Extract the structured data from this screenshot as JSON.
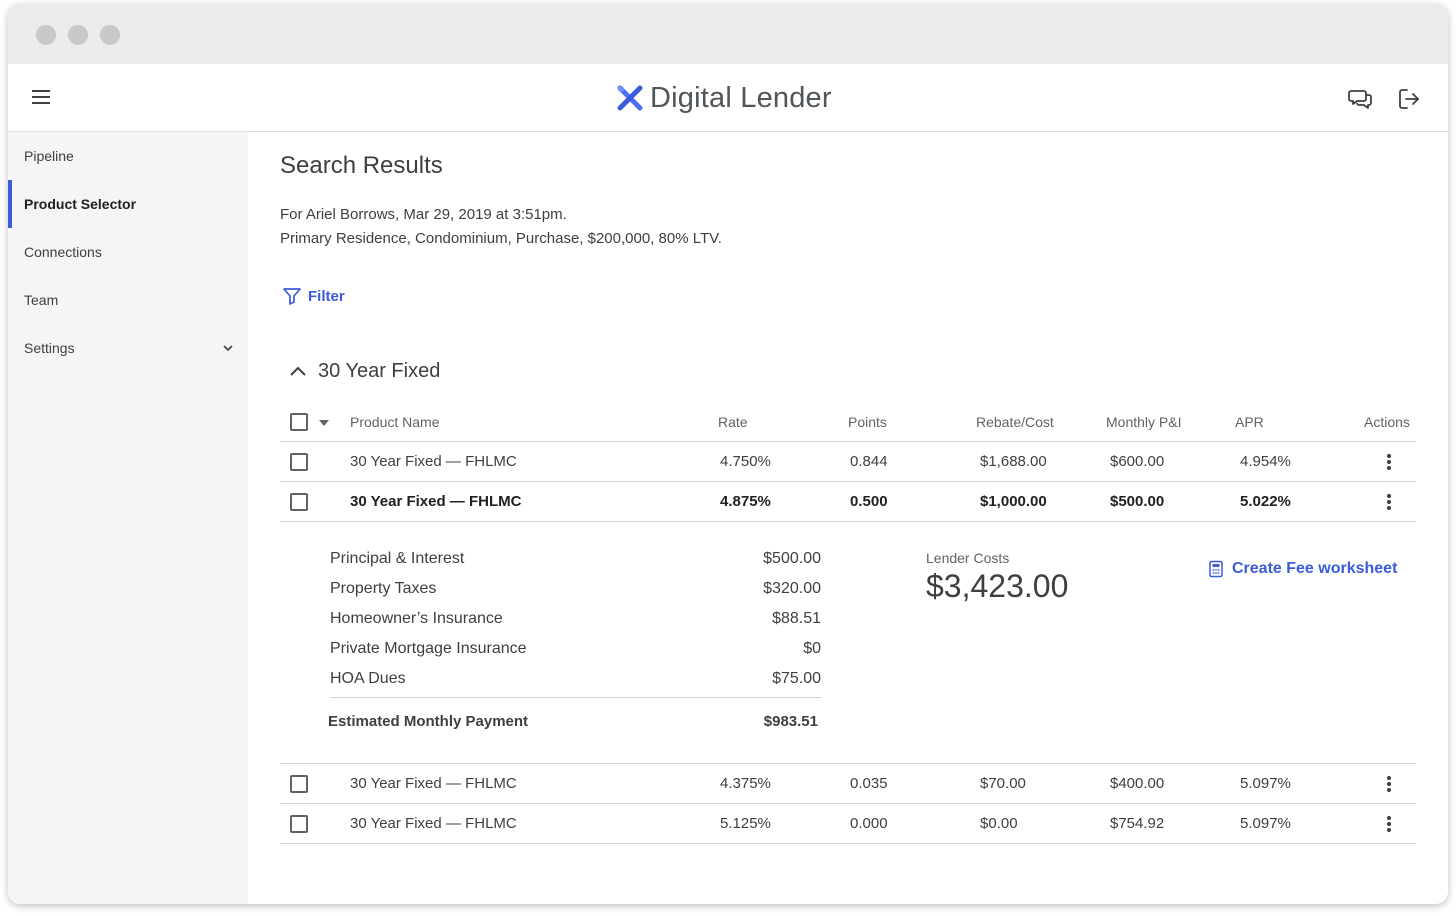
{
  "app": {
    "name": "Digital Lender"
  },
  "sidebar": {
    "items": [
      {
        "label": "Pipeline"
      },
      {
        "label": "Product Selector"
      },
      {
        "label": "Connections"
      },
      {
        "label": "Team"
      },
      {
        "label": "Settings"
      }
    ]
  },
  "page": {
    "title": "Search Results",
    "meta_line1": "For Ariel Borrows, Mar 29, 2019 at 3:51pm.",
    "meta_line2": "Primary Residence, Condominium, Purchase, $200,000, 80% LTV.",
    "filter_label": "Filter"
  },
  "group": {
    "label": "30 Year Fixed"
  },
  "table": {
    "headers": {
      "product": "Product Name",
      "rate": "Rate",
      "points": "Points",
      "rebate": "Rebate/Cost",
      "monthly": "Monthly P&I",
      "apr": "APR",
      "actions": "Actions"
    },
    "rows": [
      {
        "product": "30 Year Fixed — FHLMC",
        "rate": "4.750%",
        "points": "0.844",
        "rebate": "$1,688.00",
        "monthly": "$600.00",
        "apr": "4.954%"
      },
      {
        "product": "30 Year Fixed — FHLMC",
        "rate": "4.875%",
        "points": "0.500",
        "rebate": "$1,000.00",
        "monthly": "$500.00",
        "apr": "5.022%"
      },
      {
        "product": "30 Year Fixed — FHLMC",
        "rate": "4.375%",
        "points": "0.035",
        "rebate": "$70.00",
        "monthly": "$400.00",
        "apr": "5.097%"
      },
      {
        "product": "30 Year Fixed — FHLMC",
        "rate": "5.125%",
        "points": "0.000",
        "rebate": "$0.00",
        "monthly": "$754.92",
        "apr": "5.097%"
      }
    ]
  },
  "detail": {
    "lines": [
      {
        "label": "Principal & Interest",
        "value": "$500.00"
      },
      {
        "label": "Property Taxes",
        "value": "$320.00"
      },
      {
        "label": "Homeowner’s Insurance",
        "value": "$88.51"
      },
      {
        "label": "Private Mortgage Insurance",
        "value": "$0"
      },
      {
        "label": "HOA Dues",
        "value": "$75.00"
      }
    ],
    "total_label": "Estimated Monthly Payment",
    "total_value": "$983.51",
    "lender_costs_label": "Lender Costs",
    "lender_costs_value": "$3,423.00",
    "fee_worksheet_label": "Create Fee worksheet"
  },
  "colors": {
    "accent": "#3b5bdb",
    "sidebar_bg": "#f5f5f5",
    "titlebar_bg": "#ebebeb"
  },
  "icons": [
    "menu-icon",
    "logo-icon",
    "chat-icon",
    "logout-icon",
    "chevron-down-icon",
    "filter-icon",
    "chevron-up-icon",
    "caret-down-icon",
    "more-vert-icon",
    "calculator-icon"
  ]
}
